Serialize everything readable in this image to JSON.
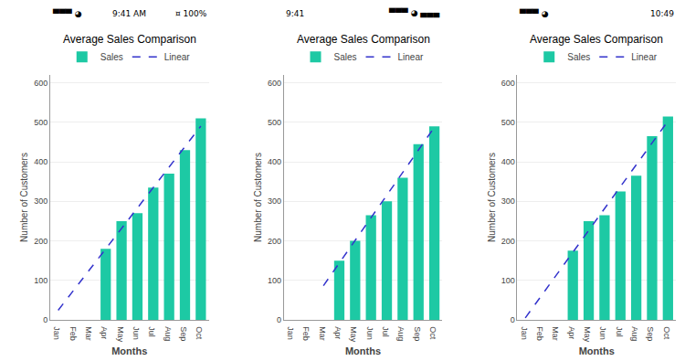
{
  "chart_data": [
    {
      "type": "bar",
      "title": "Average Sales Comparison",
      "xlabel": "Months",
      "ylabel": "Number of Customers",
      "categories": [
        "Jan",
        "Feb",
        "Mar",
        "Apr",
        "May",
        "Jun",
        "Jul",
        "Aug",
        "Sep",
        "Oct"
      ],
      "series": [
        {
          "name": "Sales",
          "type": "bar",
          "color": "#1DC9A4",
          "values": [
            null,
            null,
            null,
            180,
            250,
            270,
            335,
            370,
            430,
            510
          ]
        },
        {
          "name": "Linear",
          "type": "line",
          "color": "#3333CC",
          "line_style": "dashed",
          "values": [
            24.29,
            76.07,
            127.86,
            179.64,
            231.43,
            283.21,
            335,
            386.79,
            438.57,
            490.36
          ]
        }
      ],
      "ylim": [
        0,
        620
      ],
      "yticks": [
        0,
        100,
        200,
        300,
        400,
        500,
        600
      ],
      "grid": true,
      "legend": "top",
      "annotations": [
        "▀▀▀ ◕",
        "9:41 AM",
        "¤ 100%"
      ]
    },
    {
      "type": "bar",
      "title": "Average Sales Comparison",
      "xlabel": "Months",
      "ylabel": "Number of Customers",
      "categories": [
        "Jan",
        "Feb",
        "Mar",
        "Apr",
        "May",
        "Jun",
        "Jul",
        "Aug",
        "Sep",
        "Oct"
      ],
      "series": [
        {
          "name": "Sales",
          "type": "bar",
          "color": "#1DC9A4",
          "values": [
            null,
            null,
            null,
            150,
            200,
            265,
            300,
            360,
            445,
            490
          ]
        },
        {
          "name": "Linear",
          "type": "line",
          "color": "#3333CC",
          "line_style": "dashed",
          "values": [
            null,
            null,
            86.43,
            143.75,
            201.07,
            258.39,
            315.71,
            373.04,
            430.36,
            487.68
          ]
        }
      ],
      "ylim": [
        0,
        620
      ],
      "yticks": [
        0,
        100,
        200,
        300,
        400,
        500,
        600
      ],
      "grid": true,
      "legend": "top",
      "annotations": [
        "9:41",
        "▀▀▀ ◕ ▄▄▄"
      ]
    },
    {
      "type": "bar",
      "title": "Average Sales Comparison",
      "xlabel": "Months",
      "ylabel": "Number of Customers",
      "categories": [
        "Jan",
        "Feb",
        "Mar",
        "Apr",
        "May",
        "Jun",
        "Jul",
        "Aug",
        "Sep",
        "Oct"
      ],
      "series": [
        {
          "name": "Sales",
          "type": "bar",
          "color": "#1DC9A4",
          "values": [
            null,
            null,
            null,
            175,
            250,
            265,
            325,
            365,
            465,
            515
          ]
        },
        {
          "name": "Linear",
          "type": "line",
          "color": "#3333CC",
          "line_style": "dashed",
          "values": [
            5,
            60.36,
            115.71,
            171.07,
            226.43,
            281.79,
            337.14,
            392.5,
            447.86,
            503.21
          ]
        }
      ],
      "ylim": [
        0,
        620
      ],
      "yticks": [
        0,
        100,
        200,
        300,
        400,
        500,
        600
      ],
      "grid": true,
      "legend": "top",
      "annotations": [
        "▀▀▀ ◕",
        "10:49"
      ]
    }
  ]
}
